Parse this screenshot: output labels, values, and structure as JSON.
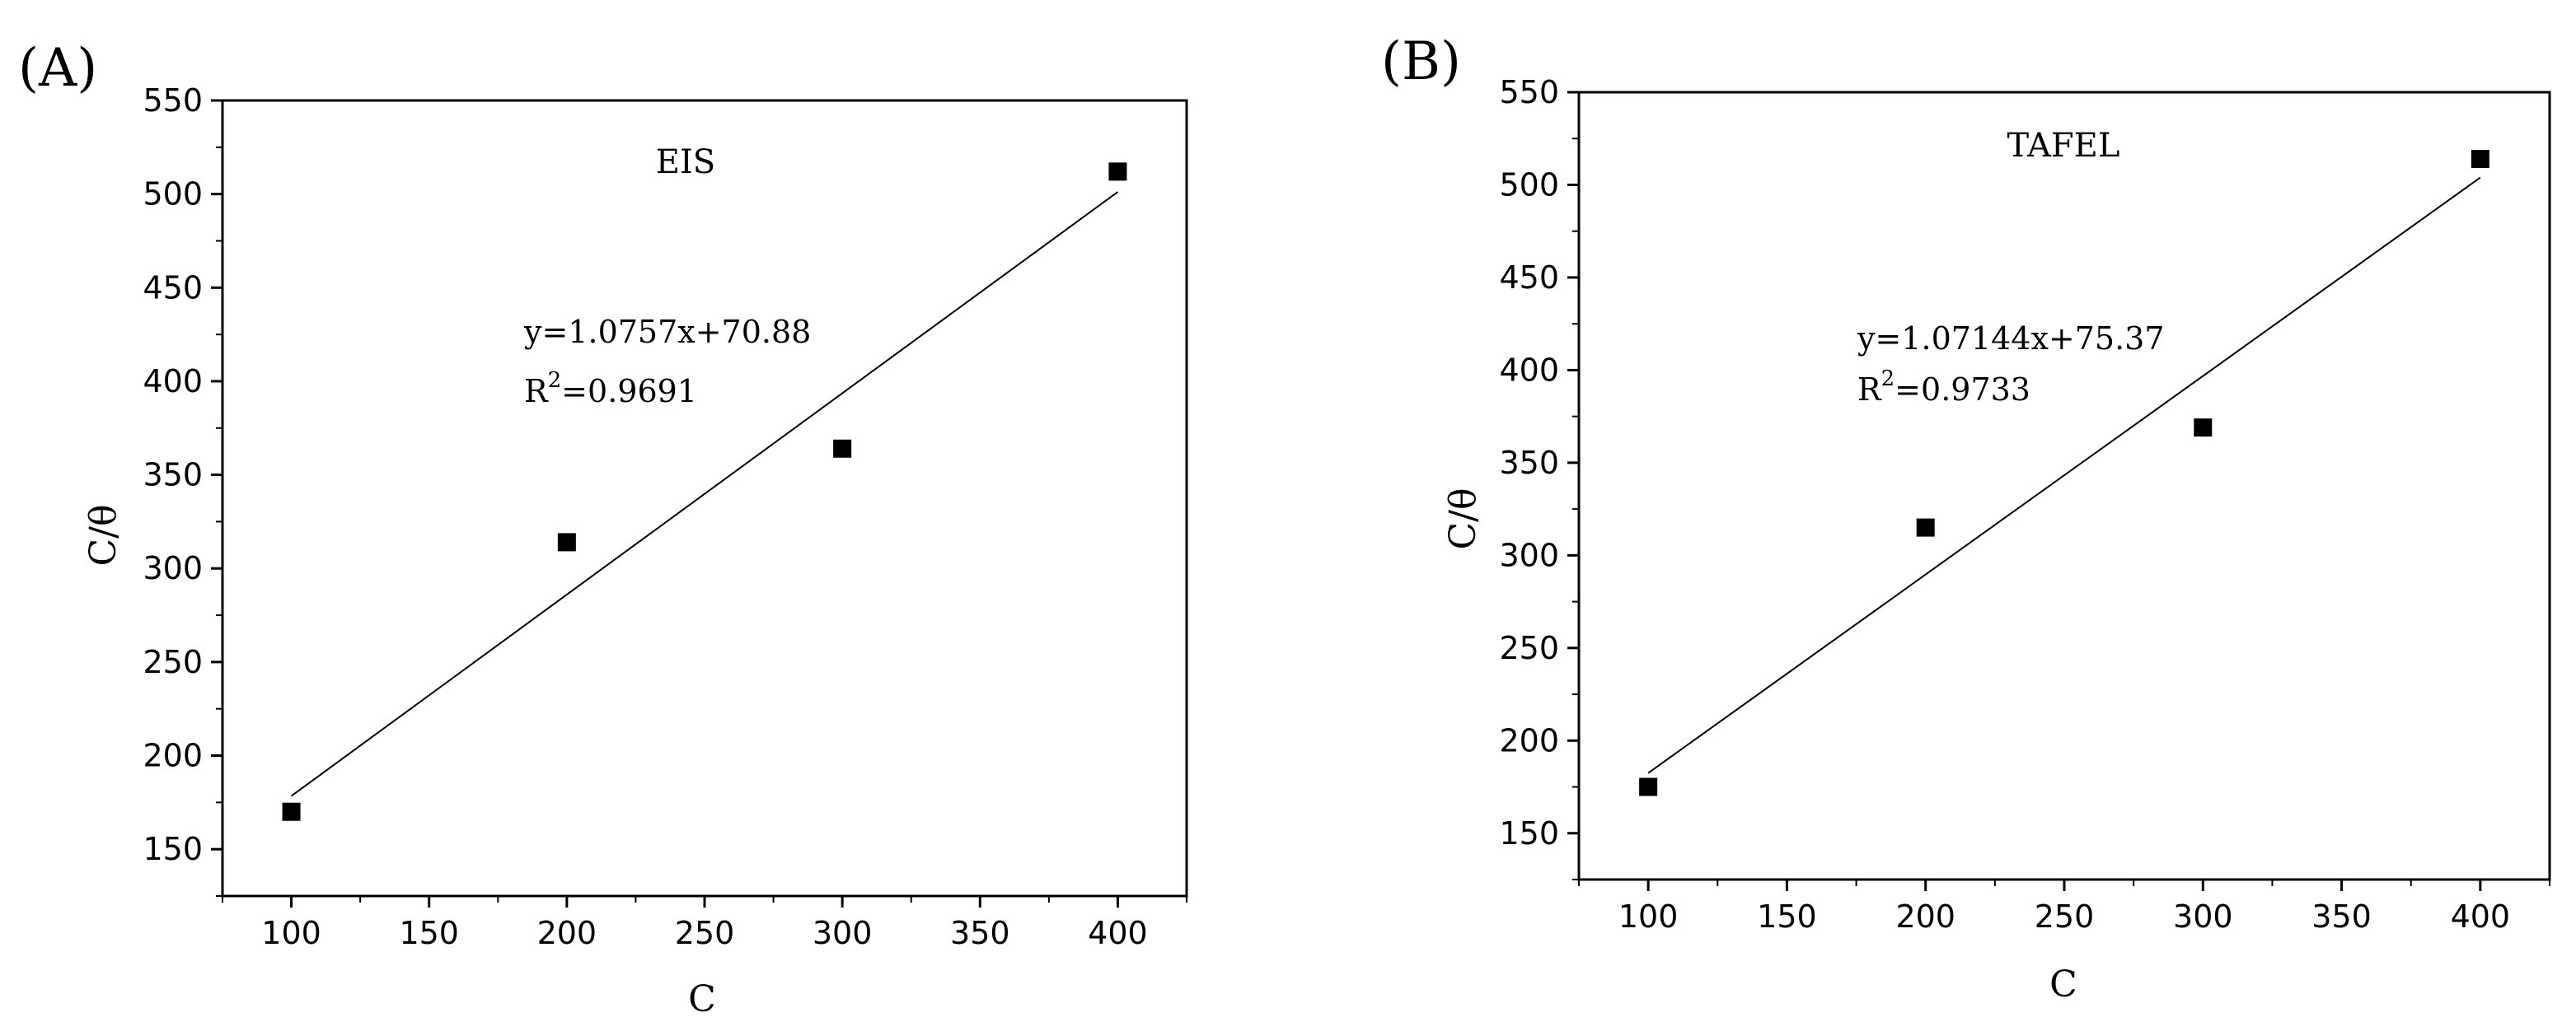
{
  "chart_data": [
    {
      "type": "scatter",
      "panel_label": "(A)",
      "title": "EIS",
      "xlabel": "C",
      "ylabel": "C/θ",
      "xlim": [
        75,
        425
      ],
      "ylim": [
        125,
        550
      ],
      "x_ticks": [
        100,
        150,
        200,
        250,
        300,
        350,
        400
      ],
      "y_ticks": [
        150,
        200,
        250,
        300,
        350,
        400,
        450,
        500,
        550
      ],
      "series": [
        {
          "x": [
            100,
            200,
            300,
            400
          ],
          "y": [
            170,
            314,
            364,
            512
          ]
        }
      ],
      "fit": {
        "slope": 1.0757,
        "intercept": 70.88,
        "x_range": [
          100,
          400
        ]
      },
      "annotation": {
        "equation": "y=1.0757x+70.88",
        "r2_prefix": "R",
        "r2_sup": "2",
        "r2_value": "=0.9691"
      },
      "grid": false,
      "marker": "square",
      "color": "#000000"
    },
    {
      "type": "scatter",
      "panel_label": "(B)",
      "title": "TAFEL",
      "xlabel": "C",
      "ylabel": "C/θ",
      "xlim": [
        75,
        425
      ],
      "ylim": [
        125,
        550
      ],
      "x_ticks": [
        100,
        150,
        200,
        250,
        300,
        350,
        400
      ],
      "y_ticks": [
        150,
        200,
        250,
        300,
        350,
        400,
        450,
        500,
        550
      ],
      "series": [
        {
          "x": [
            100,
            200,
            300,
            400
          ],
          "y": [
            175,
            315,
            369,
            514
          ]
        }
      ],
      "fit": {
        "slope": 1.07144,
        "intercept": 75.37,
        "x_range": [
          100,
          400
        ]
      },
      "annotation": {
        "equation": "y=1.07144x+75.37",
        "r2_prefix": "R",
        "r2_sup": "2",
        "r2_value": "=0.9733"
      },
      "grid": false,
      "marker": "square",
      "color": "#000000"
    }
  ]
}
